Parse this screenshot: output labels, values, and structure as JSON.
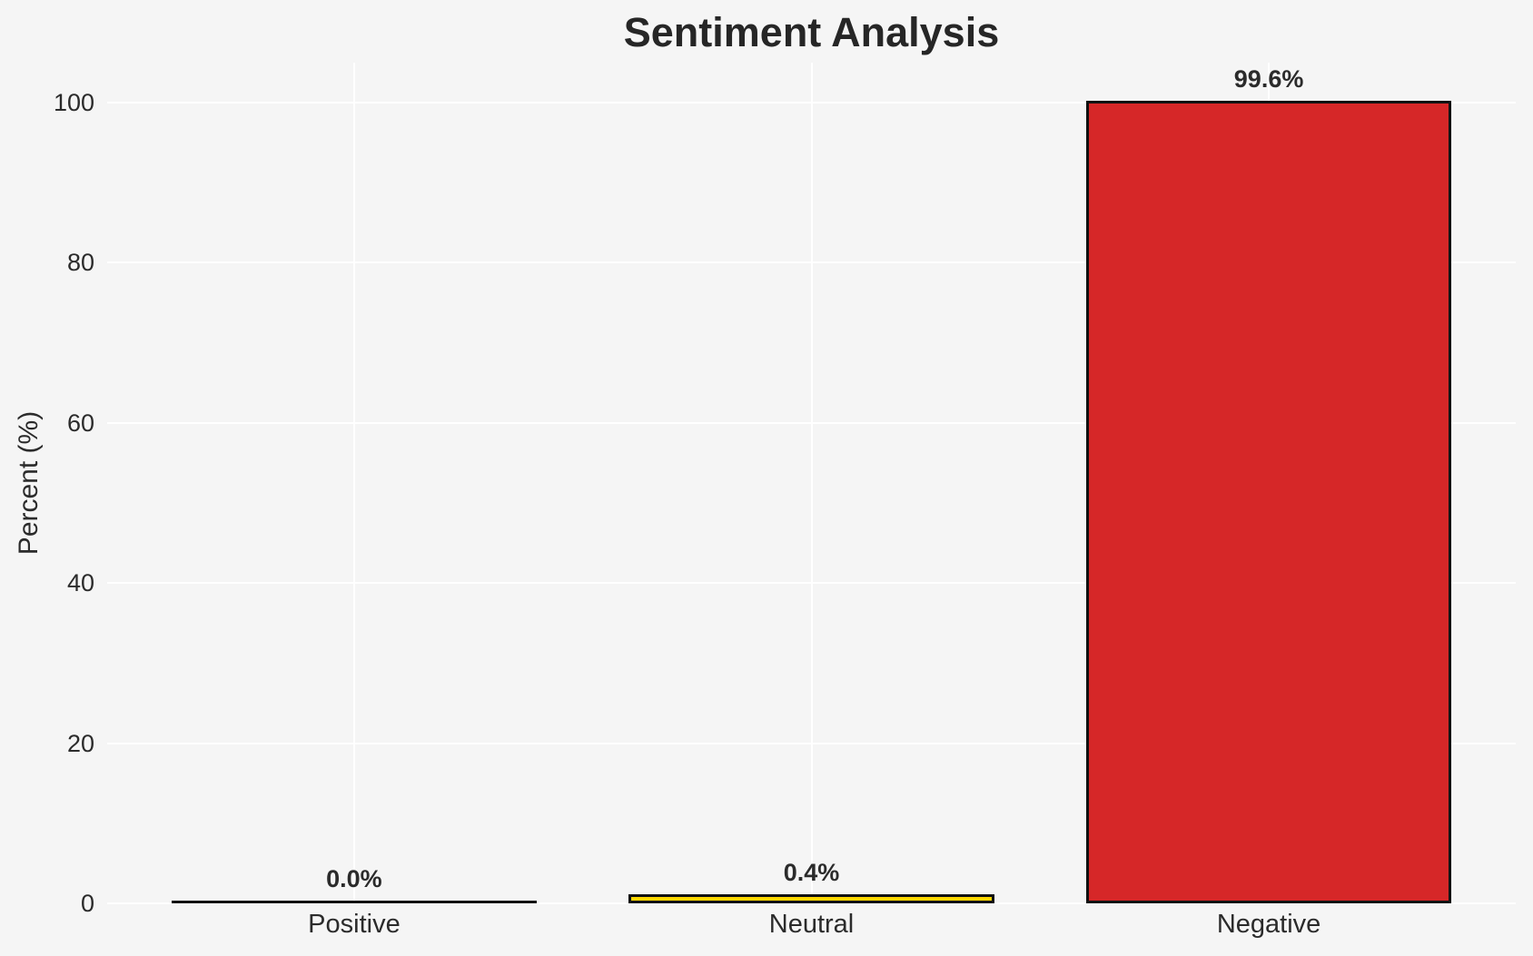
{
  "chart_data": {
    "type": "bar",
    "title": "Sentiment Analysis",
    "xlabel": "",
    "ylabel": "Percent (%)",
    "categories": [
      "Positive",
      "Neutral",
      "Negative"
    ],
    "values": [
      0.0,
      0.4,
      99.6
    ],
    "bar_labels": [
      "0.0%",
      "0.4%",
      "99.6%"
    ],
    "bar_colors": [
      "none",
      "#ffd700",
      "#d62728"
    ],
    "bar_edge_color": "#111111",
    "ylim": [
      0,
      105
    ],
    "yticks": [
      0,
      20,
      40,
      60,
      80,
      100
    ],
    "grid": "on",
    "grid_color": "#ffffff",
    "background_color": "#f5f5f5",
    "text_color": "#2b2b2b",
    "legend_position": "none"
  }
}
